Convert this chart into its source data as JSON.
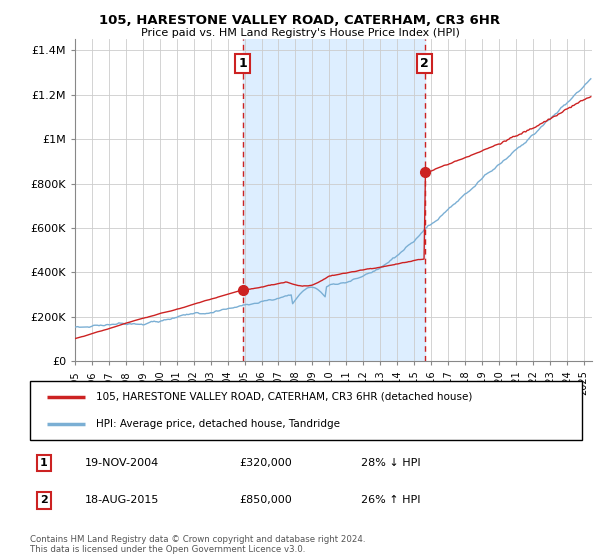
{
  "title": "105, HARESTONE VALLEY ROAD, CATERHAM, CR3 6HR",
  "subtitle": "Price paid vs. HM Land Registry's House Price Index (HPI)",
  "red_label": "105, HARESTONE VALLEY ROAD, CATERHAM, CR3 6HR (detached house)",
  "blue_label": "HPI: Average price, detached house, Tandridge",
  "footnote": "Contains HM Land Registry data © Crown copyright and database right 2024.\nThis data is licensed under the Open Government Licence v3.0.",
  "ann1": {
    "label": "1",
    "date": "19-NOV-2004",
    "price": "£320,000",
    "hpi": "28% ↓ HPI",
    "x_year": 2004.88,
    "y_val": 320000
  },
  "ann2": {
    "label": "2",
    "date": "18-AUG-2015",
    "price": "£850,000",
    "hpi": "26% ↑ HPI",
    "x_year": 2015.63,
    "y_val": 850000
  },
  "ylim": [
    0,
    1450000
  ],
  "xlim_start": 1995.0,
  "xlim_end": 2025.5,
  "bg_region_start": 2004.88,
  "bg_region_end": 2015.63,
  "red_line_color": "#cc2222",
  "blue_line_color": "#7bafd4",
  "shaded_bg_color": "#ddeeff",
  "grid_color": "#cccccc",
  "vline_color": "#cc2222",
  "marker_color": "#cc2222",
  "yticks": [
    0,
    200000,
    400000,
    600000,
    800000,
    1000000,
    1200000,
    1400000
  ],
  "ylabels": [
    "£0",
    "£200K",
    "£400K",
    "£600K",
    "£800K",
    "£1M",
    "£1.2M",
    "£1.4M"
  ]
}
